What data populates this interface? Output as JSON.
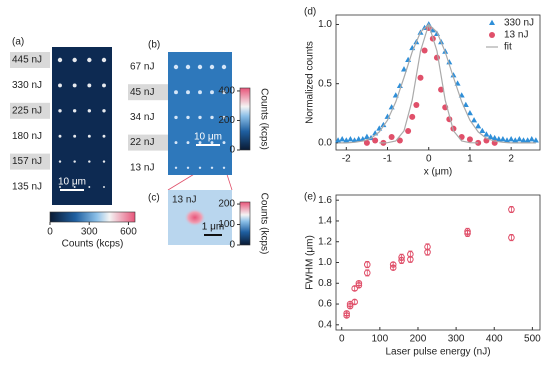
{
  "chart_data": [
    {
      "type": "image",
      "panel_label": "(a)",
      "labels": [
        "445 nJ",
        "330 nJ",
        "225 nJ",
        "180 nJ",
        "157 nJ",
        "135 nJ"
      ],
      "highlighted": [
        true,
        false,
        true,
        false,
        true,
        false
      ],
      "scale_bar": "10 μm",
      "colorbar": {
        "label": "Counts (kcps)",
        "lim": [
          0,
          650
        ],
        "ticks": [
          0,
          300,
          600
        ],
        "orientation": "horizontal"
      }
    },
    {
      "type": "image",
      "panel_label": "(b)",
      "labels": [
        "67 nJ",
        "45 nJ",
        "34 nJ",
        "22 nJ",
        "13 nJ"
      ],
      "highlighted": [
        false,
        true,
        false,
        true,
        false
      ],
      "scale_bar": "10 μm",
      "colorbar": {
        "label": "Counts (kcps)",
        "lim": [
          0,
          420
        ],
        "ticks": [
          0,
          200,
          400
        ],
        "orientation": "vertical"
      }
    },
    {
      "type": "image",
      "panel_label": "(c)",
      "labels": [
        "13 nJ"
      ],
      "highlighted": [
        false
      ],
      "scale_bar": "1 μm",
      "colorbar": {
        "label": "Counts (kcps)",
        "lim": [
          0,
          210
        ],
        "ticks": [
          0,
          100,
          200
        ],
        "orientation": "vertical"
      }
    },
    {
      "type": "scatter",
      "panel_label": "(d)",
      "x_label": "x (μm)",
      "y_label": "Normalized counts",
      "xlim": [
        -2.25,
        2.7
      ],
      "ylim": [
        -0.06,
        1.08
      ],
      "xticks": [
        -2,
        -1,
        0,
        1,
        2
      ],
      "yticks": [
        {
          "value": 0,
          "label": "0.0"
        },
        {
          "value": 0.5,
          "label": "0.5"
        },
        {
          "value": 1,
          "label": "1.0"
        }
      ],
      "legend": "upper right",
      "series": [
        {
          "name": "330 nJ",
          "color": "#2f8fd8",
          "marker": "triangle",
          "x": [
            -2.2,
            -2.1,
            -2.0,
            -1.9,
            -1.8,
            -1.7,
            -1.6,
            -1.5,
            -1.4,
            -1.3,
            -1.2,
            -1.1,
            -1.0,
            -0.9,
            -0.8,
            -0.7,
            -0.6,
            -0.5,
            -0.4,
            -0.3,
            -0.2,
            -0.1,
            0.0,
            0.1,
            0.2,
            0.3,
            0.4,
            0.5,
            0.6,
            0.7,
            0.8,
            0.9,
            1.0,
            1.1,
            1.2,
            1.3,
            1.4,
            1.5,
            1.6,
            1.7,
            1.8,
            1.9,
            2.0,
            2.1,
            2.2,
            2.3,
            2.4,
            2.5,
            2.6
          ],
          "values": [
            0.02,
            0.03,
            0.02,
            0.03,
            0.02,
            0.03,
            0.03,
            0.05,
            0.04,
            0.08,
            0.12,
            0.15,
            0.22,
            0.3,
            0.4,
            0.48,
            0.62,
            0.7,
            0.8,
            0.85,
            0.93,
            0.97,
            1.0,
            0.95,
            0.92,
            0.85,
            0.77,
            0.68,
            0.57,
            0.5,
            0.4,
            0.32,
            0.25,
            0.19,
            0.14,
            0.1,
            0.07,
            0.05,
            0.04,
            0.03,
            0.03,
            0.02,
            0.03,
            0.02,
            0.03,
            0.02,
            0.02,
            0.03,
            0.02
          ]
        },
        {
          "name": "13 nJ",
          "color": "#e0506a",
          "marker": "circle",
          "x": [
            -1.5,
            -1.3,
            -1.1,
            -0.9,
            -0.7,
            -0.5,
            -0.4,
            -0.3,
            -0.2,
            -0.1,
            0.0,
            0.1,
            0.2,
            0.3,
            0.4,
            0.5,
            0.6,
            0.8,
            1.0,
            1.2,
            1.4,
            1.6
          ],
          "values": [
            0.0,
            0.02,
            0.0,
            0.05,
            0.02,
            0.1,
            0.22,
            0.32,
            0.55,
            0.78,
            0.97,
            0.88,
            0.72,
            0.45,
            0.3,
            0.2,
            0.12,
            0.05,
            0.03,
            0.0,
            0.02,
            0.0
          ]
        },
        {
          "name": "fit",
          "color": "#aaaaaa",
          "marker": "line",
          "x": [
            -2.2,
            -2.0,
            -1.8,
            -1.6,
            -1.4,
            -1.2,
            -1.0,
            -0.8,
            -0.6,
            -0.4,
            -0.2,
            0.0,
            0.2,
            0.4,
            0.6,
            0.8,
            1.0,
            1.2,
            1.4,
            1.6,
            1.8,
            2.0,
            2.2,
            2.4,
            2.6,
            null,
            -1.2,
            -1.0,
            -0.8,
            -0.6,
            -0.4,
            -0.2,
            0.0,
            0.2,
            0.4,
            0.6,
            0.8,
            1.0,
            1.2
          ],
          "values": [
            0,
            0,
            0.005,
            0.015,
            0.039,
            0.093,
            0.192,
            0.347,
            0.552,
            0.768,
            0.936,
            1.0,
            0.936,
            0.768,
            0.552,
            0.347,
            0.192,
            0.093,
            0.039,
            0.015,
            0.005,
            0,
            0,
            0,
            0,
            null,
            0,
            0.002,
            0.017,
            0.101,
            0.361,
            0.775,
            1.0,
            0.775,
            0.361,
            0.101,
            0.017,
            0.002,
            0
          ]
        }
      ]
    },
    {
      "type": "scatter",
      "panel_label": "(e)",
      "x_label": "Laser pulse energy (nJ)",
      "y_label": "FWHM (μm)",
      "xlim": [
        -15,
        520
      ],
      "ylim": [
        0.35,
        1.65
      ],
      "xticks": [
        0,
        100,
        200,
        300,
        400,
        500
      ],
      "yticks": [
        0.4,
        0.6,
        0.8,
        {
          "value": 1,
          "label": "1.0"
        },
        1.2,
        1.4,
        1.6
      ],
      "series": [
        {
          "color": "#e0506a",
          "marker": "open-circle",
          "x": [
            13,
            22,
            34,
            45,
            67,
            135,
            157,
            180,
            225,
            330,
            445
          ],
          "values": [
            0.49,
            0.58,
            0.62,
            0.78,
            0.9,
            0.95,
            1.02,
            1.03,
            1.1,
            1.28,
            1.24
          ],
          "errors": [
            0.02,
            0.02,
            0.02,
            0.02,
            0.03,
            0.02,
            0.03,
            0.03,
            0.03,
            0.03,
            0.03
          ]
        },
        {
          "color": "#e0506a",
          "marker": "open-circle",
          "x": [
            13,
            22,
            34,
            45,
            67,
            135,
            157,
            180,
            225,
            330,
            445
          ],
          "values": [
            0.51,
            0.6,
            0.75,
            0.8,
            0.98,
            0.98,
            1.05,
            1.08,
            1.15,
            1.3,
            1.51
          ],
          "errors": [
            0.02,
            0.02,
            0.02,
            0.02,
            0.03,
            0.02,
            0.03,
            0.03,
            0.03,
            0.03,
            0.03
          ]
        }
      ]
    }
  ]
}
